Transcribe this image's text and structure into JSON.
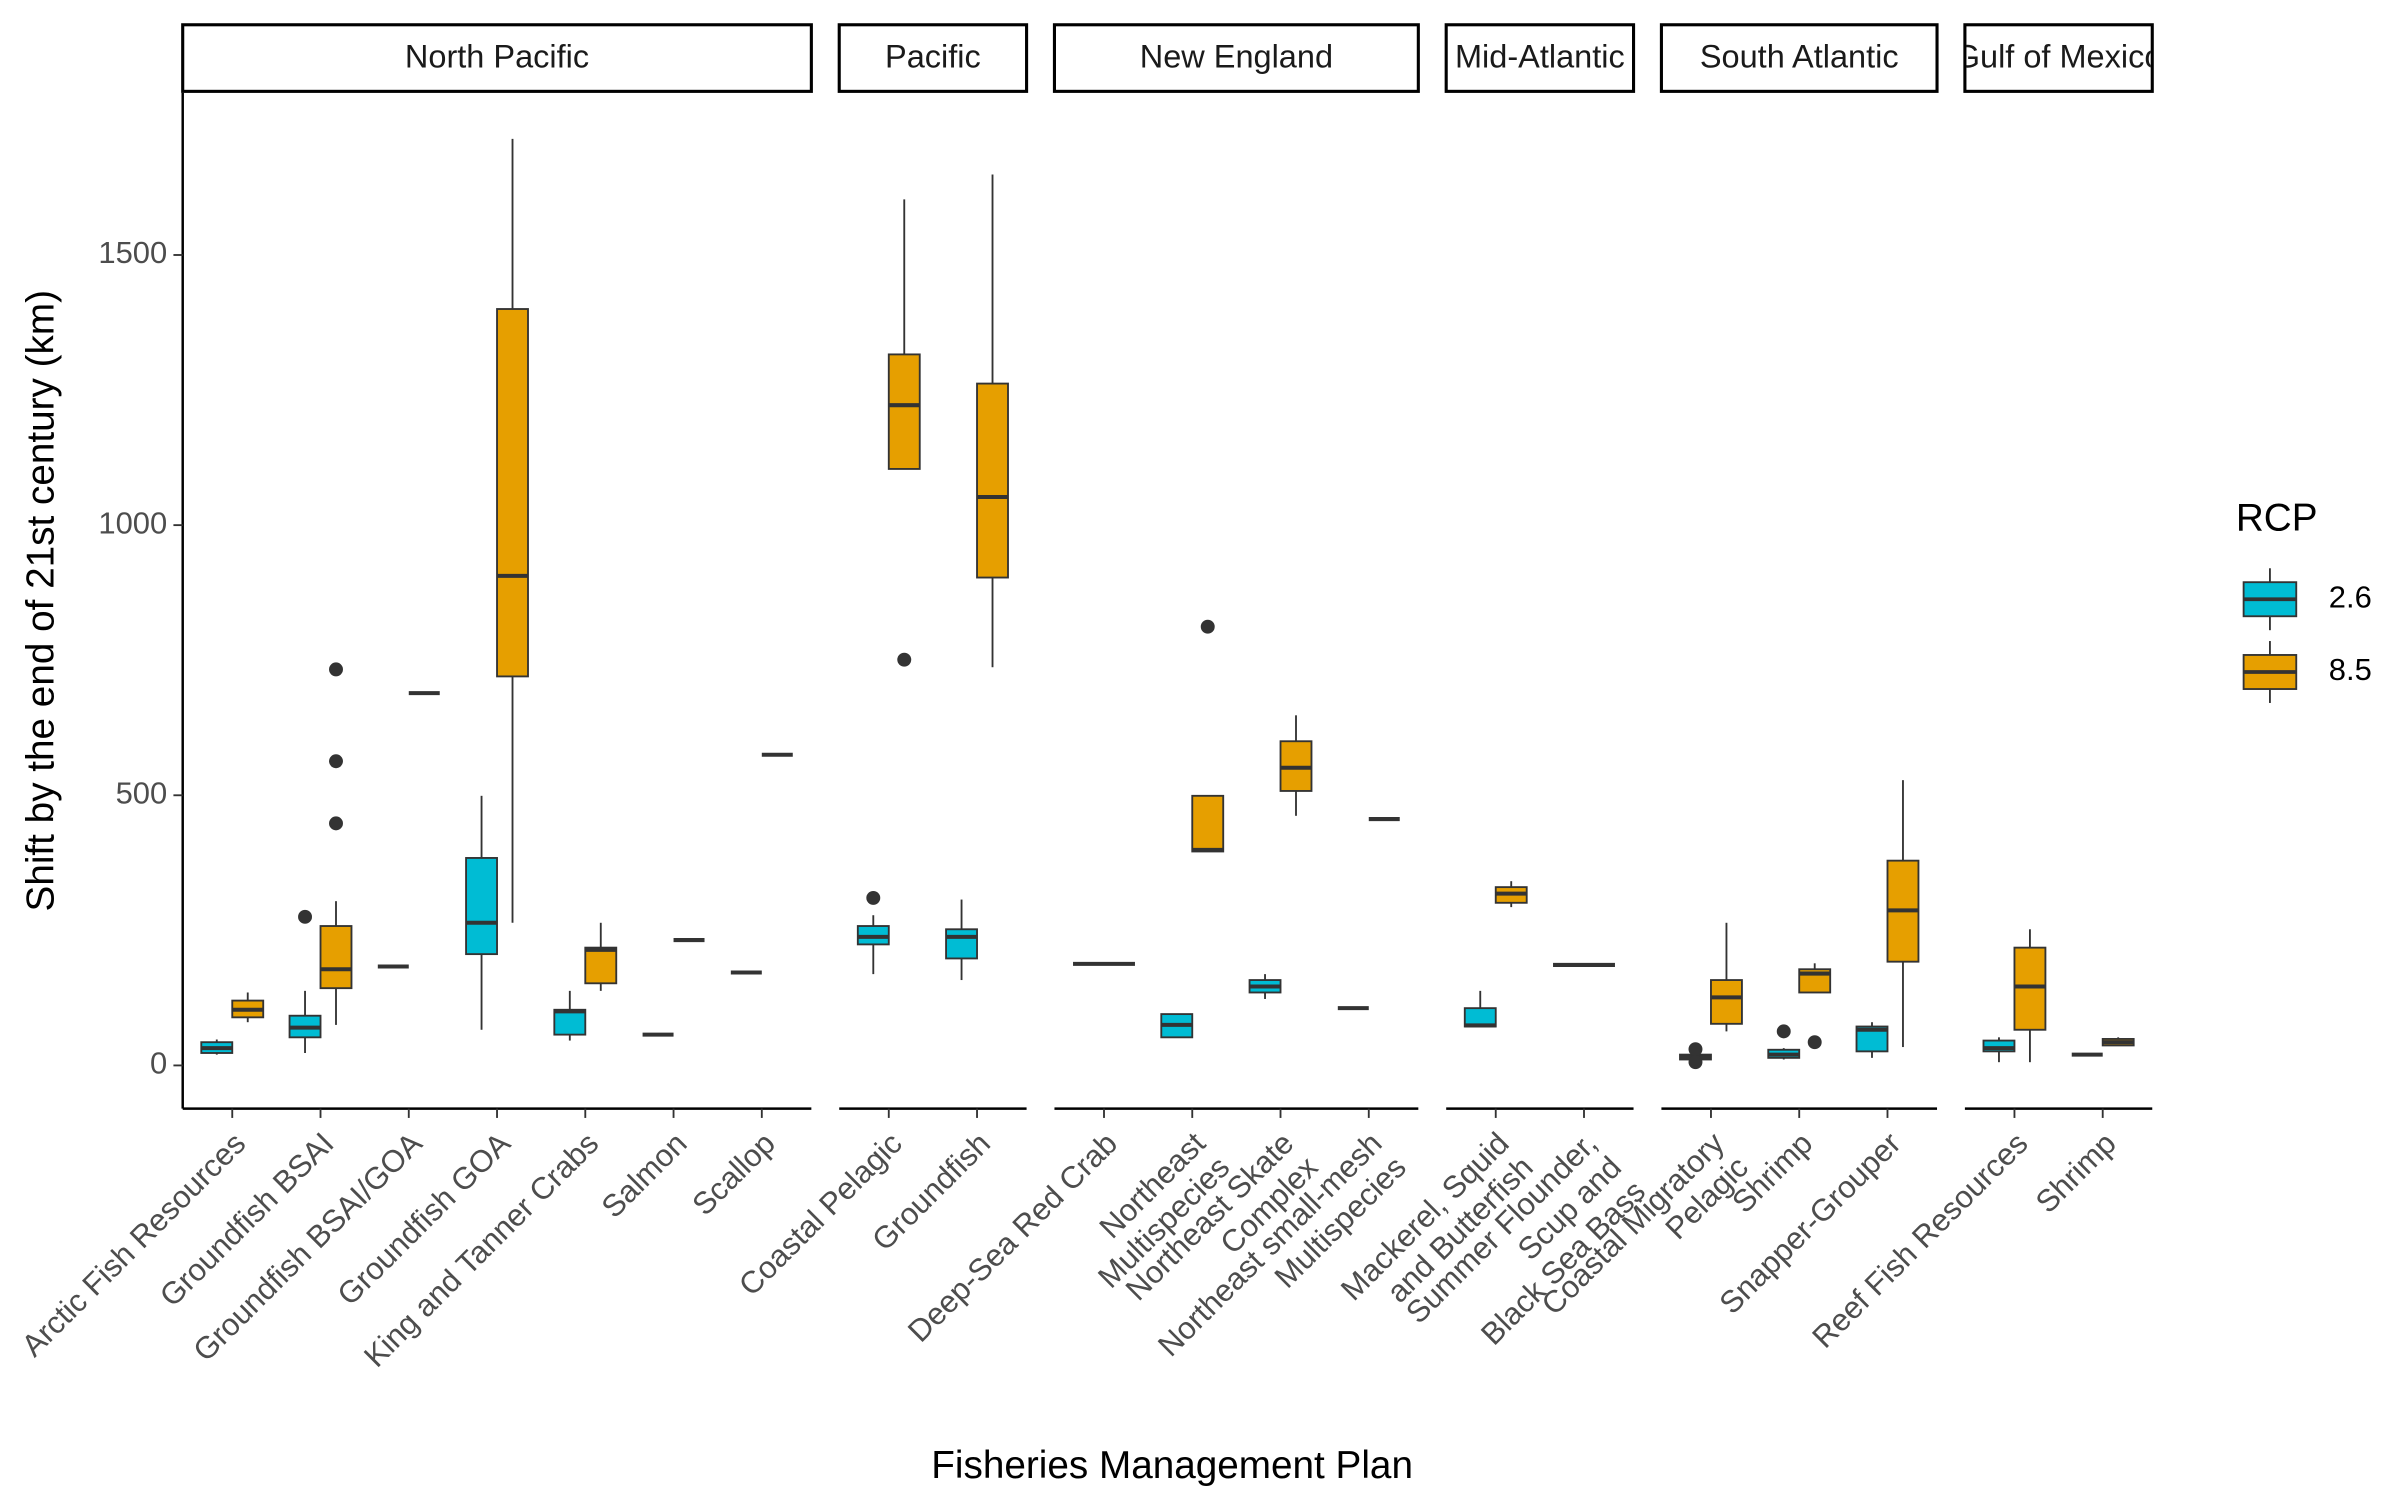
{
  "chart_data": {
    "type": "box",
    "x_label": "Fisheries Management Plan",
    "y_label": "Shift by the end of 21st century (km)",
    "legend_title": "RCP",
    "legend_position": "right",
    "ylim": [
      -80,
      1800
    ],
    "yticks": [
      0,
      500,
      1000,
      1500
    ],
    "series": [
      {
        "name": "2.6",
        "color": "#00bcd4"
      },
      {
        "name": "8.5",
        "color": "#e69f00"
      }
    ],
    "facets": [
      {
        "name": "North Pacific",
        "categories": [
          "Arctic Fish Resources",
          "Groundfish BSAI",
          "Groundfish BSAI/GOA",
          "Groundfish GOA",
          "King and Tanner Crabs",
          "Salmon",
          "Scallop"
        ],
        "series": [
          {
            "values": [
              {
                "min": 20,
                "q1": 23,
                "median": 32,
                "q3": 43,
                "max": 48,
                "outliers": []
              },
              {
                "min": 23,
                "q1": 52,
                "median": 70,
                "q3": 92,
                "max": 138,
                "outliers": [
                  275
                ]
              },
              {
                "min": 183,
                "q1": 183,
                "median": 183,
                "q3": 183,
                "max": 183,
                "outliers": []
              },
              {
                "min": 66,
                "q1": 206,
                "median": 264,
                "q3": 384,
                "max": 499,
                "outliers": []
              },
              {
                "min": 46,
                "q1": 57,
                "median": 100,
                "q3": 103,
                "max": 138,
                "outliers": []
              },
              {
                "min": 57,
                "q1": 57,
                "median": 57,
                "q3": 57,
                "max": 57,
                "outliers": []
              },
              {
                "min": 172,
                "q1": 172,
                "median": 172,
                "q3": 172,
                "max": 172,
                "outliers": []
              }
            ]
          },
          {
            "values": [
              {
                "min": 80,
                "q1": 89,
                "median": 103,
                "q3": 120,
                "max": 135,
                "outliers": []
              },
              {
                "min": 75,
                "q1": 143,
                "median": 178,
                "q3": 258,
                "max": 304,
                "outliers": [
                  733,
                  563,
                  448
                ]
              },
              {
                "min": 689,
                "q1": 689,
                "median": 689,
                "q3": 689,
                "max": 689,
                "outliers": []
              },
              {
                "min": 264,
                "q1": 720,
                "median": 906,
                "q3": 1400,
                "max": 1715,
                "outliers": []
              },
              {
                "min": 138,
                "q1": 152,
                "median": 214,
                "q3": 218,
                "max": 264,
                "outliers": []
              },
              {
                "min": 232,
                "q1": 232,
                "median": 232,
                "q3": 232,
                "max": 232,
                "outliers": []
              },
              {
                "min": 575,
                "q1": 575,
                "median": 575,
                "q3": 575,
                "max": 575,
                "outliers": []
              }
            ]
          }
        ]
      },
      {
        "name": "Pacific",
        "categories": [
          "Coastal Pelagic",
          "Groundfish"
        ],
        "series": [
          {
            "values": [
              {
                "min": 169,
                "q1": 224,
                "median": 238,
                "q3": 258,
                "max": 278,
                "outliers": [
                  310
                ]
              },
              {
                "min": 158,
                "q1": 198,
                "median": 238,
                "q3": 252,
                "max": 307,
                "outliers": []
              }
            ]
          },
          {
            "values": [
              {
                "min": 1104,
                "q1": 1104,
                "median": 1222,
                "q3": 1316,
                "max": 1603,
                "outliers": [
                  751
                ]
              },
              {
                "min": 737,
                "q1": 903,
                "median": 1052,
                "q3": 1262,
                "max": 1649,
                "outliers": []
              }
            ]
          }
        ]
      },
      {
        "name": "New England",
        "categories": [
          "Deep-Sea Red Crab",
          "Northeast\nMultispecies",
          "Northeast Skate\nComplex",
          "Northeast small-mesh\nMultispecies"
        ],
        "series": [
          {
            "values": [
              {
                "min": 188,
                "q1": 188,
                "median": 188,
                "q3": 188,
                "max": 188,
                "outliers": []
              },
              {
                "min": 52,
                "q1": 52,
                "median": 75,
                "q3": 95,
                "max": 95,
                "outliers": []
              },
              {
                "min": 123,
                "q1": 135,
                "median": 146,
                "q3": 158,
                "max": 169,
                "outliers": []
              },
              {
                "min": 106,
                "q1": 106,
                "median": 106,
                "q3": 106,
                "max": 106,
                "outliers": []
              }
            ]
          },
          {
            "values": [
              {
                "min": 188,
                "q1": 188,
                "median": 188,
                "q3": 188,
                "max": 188,
                "outliers": []
              },
              {
                "min": 396,
                "q1": 396,
                "median": 399,
                "q3": 499,
                "max": 499,
                "outliers": [
                  812
                ]
              },
              {
                "min": 462,
                "q1": 508,
                "median": 551,
                "q3": 600,
                "max": 648,
                "outliers": []
              },
              {
                "min": 456,
                "q1": 456,
                "median": 456,
                "q3": 456,
                "max": 456,
                "outliers": []
              }
            ]
          }
        ]
      },
      {
        "name": "Mid-Atlantic",
        "categories": [
          "Mackerel, Squid\nand Butterfish",
          "Summer Flounder,\nScup and\nBlack Sea Bass"
        ],
        "series": [
          {
            "values": [
              {
                "min": 72,
                "q1": 72,
                "median": 74,
                "q3": 106,
                "max": 138,
                "outliers": []
              },
              {
                "min": 186,
                "q1": 186,
                "median": 186,
                "q3": 186,
                "max": 186,
                "outliers": []
              }
            ]
          },
          {
            "values": [
              {
                "min": 293,
                "q1": 301,
                "median": 318,
                "q3": 330,
                "max": 341,
                "outliers": []
              },
              {
                "min": 186,
                "q1": 186,
                "median": 186,
                "q3": 186,
                "max": 186,
                "outliers": []
              }
            ]
          }
        ]
      },
      {
        "name": "South Atlantic",
        "categories": [
          "Coastal Migratory\nPelagic",
          "Shrimp",
          "Snapper-Grouper"
        ],
        "series": [
          {
            "values": [
              {
                "min": 8,
                "q1": 11,
                "median": 15,
                "q3": 20,
                "max": 23,
                "outliers": [
                  30,
                  6
                ]
              },
              {
                "min": 11,
                "q1": 14,
                "median": 20,
                "q3": 29,
                "max": 32,
                "outliers": [
                  63
                ]
              },
              {
                "min": 14,
                "q1": 26,
                "median": 66,
                "q3": 72,
                "max": 80,
                "outliers": []
              }
            ]
          },
          {
            "values": [
              {
                "min": 63,
                "q1": 77,
                "median": 126,
                "q3": 158,
                "max": 264,
                "outliers": []
              },
              {
                "min": 135,
                "q1": 135,
                "median": 170,
                "q3": 178,
                "max": 189,
                "outliers": [
                  43
                ]
              },
              {
                "min": 34,
                "q1": 192,
                "median": 287,
                "q3": 379,
                "max": 528,
                "outliers": []
              }
            ]
          }
        ]
      },
      {
        "name": "Gulf of Mexico",
        "categories": [
          "Reef Fish Resources",
          "Shrimp"
        ],
        "series": [
          {
            "values": [
              {
                "min": 6,
                "q1": 26,
                "median": 32,
                "q3": 46,
                "max": 52,
                "outliers": []
              },
              {
                "min": 20,
                "q1": 20,
                "median": 20,
                "q3": 20,
                "max": 20,
                "outliers": []
              }
            ]
          },
          {
            "values": [
              {
                "min": 6,
                "q1": 66,
                "median": 146,
                "q3": 218,
                "max": 252,
                "outliers": []
              },
              {
                "min": 37,
                "q1": 37,
                "median": 43,
                "q3": 49,
                "max": 52,
                "outliers": []
              }
            ]
          }
        ]
      }
    ]
  }
}
